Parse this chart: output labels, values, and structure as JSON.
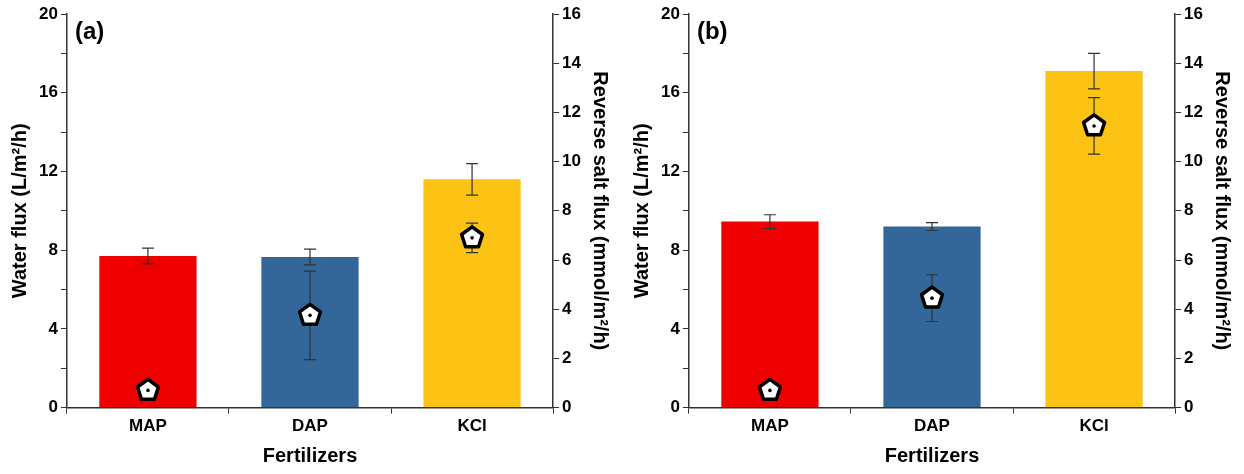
{
  "chart_data": [
    {
      "type": "bar",
      "title": "(a)",
      "categories": [
        "MAP",
        "DAP",
        "KCl"
      ],
      "xlabel": "Fertilizers",
      "ylabel": "Water flux (L/m²/h)",
      "y2label": "Reverse salt flux (mmol/m²/h)",
      "ylim": [
        0,
        20
      ],
      "yticks": [
        0,
        {
          "value": 2,
          "label": null
        },
        4,
        {
          "value": 6,
          "label": null
        },
        8,
        {
          "value": 10,
          "label": null
        },
        12,
        {
          "value": 14,
          "label": null
        },
        16,
        {
          "value": 18,
          "label": null
        },
        20
      ],
      "y2lim": [
        0,
        16
      ],
      "y2ticks": [
        0,
        2,
        4,
        6,
        8,
        10,
        12,
        14,
        16
      ],
      "grid": false,
      "legend": false,
      "series": [
        {
          "colors": [
            "#ee0000",
            "#336699",
            "#fcc314"
          ],
          "values": [
            7.7,
            7.65,
            11.6
          ],
          "errors": [
            0.4,
            0.4,
            0.8
          ]
        },
        {
          "type": "scatter",
          "axis": "y2",
          "color": "#ffffff",
          "values": [
            0.7,
            3.75,
            6.9
          ],
          "errors": [
            0.1,
            1.8,
            0.6
          ]
        }
      ]
    },
    {
      "type": "bar",
      "title": "(b)",
      "categories": [
        "MAP",
        "DAP",
        "KCl"
      ],
      "xlabel": "Fertilizers",
      "ylabel": "Water flux (L/m²/h)",
      "y2label": "Reverse salt flux (mmol/m²/h)",
      "ylim": [
        0,
        20
      ],
      "yticks": [
        0,
        {
          "value": 2,
          "label": null
        },
        4,
        {
          "value": 6,
          "label": null
        },
        8,
        {
          "value": 10,
          "label": null
        },
        12,
        {
          "value": 14,
          "label": null
        },
        16,
        {
          "value": 18,
          "label": null
        },
        20
      ],
      "y2lim": [
        0,
        16
      ],
      "y2ticks": [
        0,
        2,
        4,
        6,
        8,
        10,
        12,
        14,
        16
      ],
      "grid": false,
      "legend": false,
      "series": [
        {
          "colors": [
            "#ee0000",
            "#336699",
            "#fcc314"
          ],
          "values": [
            9.45,
            9.2,
            17.1
          ],
          "errors": [
            0.35,
            0.2,
            0.9
          ]
        },
        {
          "type": "scatter",
          "axis": "y2",
          "color": "#ffffff",
          "values": [
            0.7,
            4.45,
            11.45
          ],
          "errors": [
            0.1,
            0.95,
            1.15
          ]
        }
      ]
    }
  ]
}
